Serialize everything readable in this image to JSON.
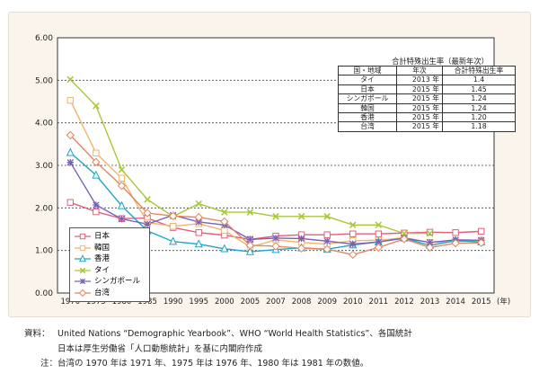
{
  "chart_data": {
    "type": "line",
    "x": [
      "1970",
      "1975",
      "1980",
      "1985",
      "1990",
      "1995",
      "2000",
      "2005",
      "2007",
      "2008",
      "2009",
      "2010",
      "2011",
      "2012",
      "2013",
      "2014",
      "2015"
    ],
    "x_unit": "(年)",
    "y_ticks": [
      "0.00",
      "1.00",
      "2.00",
      "3.00",
      "4.00",
      "5.00",
      "6.00"
    ],
    "ylim": [
      0,
      6
    ],
    "grid": "horizontal dashed",
    "legend_position": "bottom-left",
    "series": [
      {
        "name": "日本",
        "color": "#e0607a",
        "marker": "square",
        "values": [
          2.13,
          1.91,
          1.75,
          1.76,
          1.54,
          1.42,
          1.36,
          1.26,
          1.34,
          1.37,
          1.37,
          1.39,
          1.39,
          1.41,
          1.43,
          1.42,
          1.45
        ]
      },
      {
        "name": "韓国",
        "color": "#f2b46a",
        "marker": "square",
        "values": [
          4.53,
          3.29,
          2.7,
          1.66,
          1.57,
          1.63,
          1.47,
          1.08,
          1.25,
          1.19,
          1.15,
          1.23,
          1.24,
          1.3,
          1.19,
          1.21,
          1.24
        ]
      },
      {
        "name": "香港",
        "color": "#1fa5c8",
        "marker": "triangle",
        "values": [
          3.3,
          2.77,
          2.05,
          1.46,
          1.21,
          1.15,
          1.04,
          0.97,
          1.02,
          1.06,
          1.03,
          1.13,
          1.2,
          1.29,
          1.12,
          1.23,
          1.2
        ]
      },
      {
        "name": "タイ",
        "color": "#a8c837",
        "marker": "cross",
        "values": [
          5.02,
          4.4,
          2.9,
          2.2,
          1.8,
          2.1,
          1.9,
          1.9,
          1.8,
          1.8,
          1.8,
          1.6,
          1.6,
          1.4,
          1.4,
          null,
          null
        ]
      },
      {
        "name": "シンガポール",
        "color": "#7b60b8",
        "marker": "asterisk",
        "values": [
          3.07,
          2.07,
          1.74,
          1.62,
          1.83,
          1.67,
          1.6,
          1.26,
          1.29,
          1.28,
          1.22,
          1.15,
          1.2,
          1.29,
          1.19,
          1.25,
          1.24
        ]
      },
      {
        "name": "台湾",
        "color": "#e2875e",
        "marker": "diamond",
        "values": [
          3.71,
          3.08,
          2.52,
          1.88,
          1.81,
          1.78,
          1.68,
          1.12,
          1.1,
          1.05,
          1.03,
          0.9,
          1.07,
          1.27,
          1.07,
          1.17,
          1.18
        ]
      }
    ]
  },
  "table": {
    "title": "合計特殊出生率（最新年次）",
    "headers": [
      "国・地域",
      "年次",
      "合計特殊出生率"
    ],
    "rows": [
      [
        "タイ",
        "2013 年",
        "1.4"
      ],
      [
        "日本",
        "2015 年",
        "1.45"
      ],
      [
        "シンガポール",
        "2015 年",
        "1.24"
      ],
      [
        "韓国",
        "2015 年",
        "1.24"
      ],
      [
        "香港",
        "2015 年",
        "1.20"
      ],
      [
        "台湾",
        "2015 年",
        "1.18"
      ]
    ]
  },
  "notes": {
    "source_label": "資料：",
    "source_line1": "United Nations “Demographic Yearbook”、WHO “World Health Statistics”、各国統計",
    "source_line2": "日本は厚生労働省「人口動態統計」を基に内閣府作成",
    "note_label": "注：",
    "note_line": "台湾の 1970 年は 1971 年、1975 年は 1976 年、1980 年は 1981 年の数値。"
  }
}
